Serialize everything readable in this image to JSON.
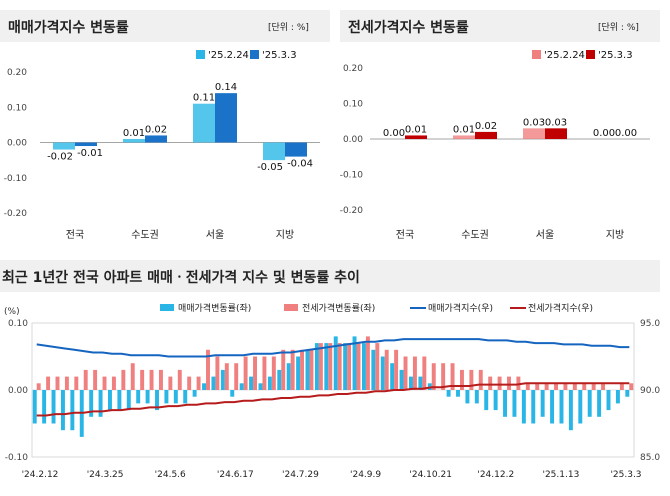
{
  "colors": {
    "panel_header_bg": "#f0f0f0",
    "sale_prev": "#29b6e6",
    "sale_curr": "#1a73c8",
    "rent_prev": "#f08080",
    "rent_curr": "#c00000",
    "sale_index_line": "#1565c0",
    "rent_index_line": "#b71c1c",
    "grid": "#d9d9d9",
    "zero_line": "#888888"
  },
  "chart_data": [
    {
      "type": "bar",
      "title": "매매가격지수 변동률",
      "unit_label": "[단위 : %]",
      "categories": [
        "전국",
        "수도권",
        "서울",
        "지방"
      ],
      "series": [
        {
          "name": "'25.2.24",
          "values": [
            -0.02,
            0.01,
            0.11,
            -0.05
          ],
          "labels": [
            "-0.02",
            "0.01",
            "0.11",
            "-0.05"
          ]
        },
        {
          "name": "'25.3.3",
          "values": [
            -0.01,
            0.02,
            0.14,
            -0.04
          ],
          "labels": [
            "-0.01",
            "0.02",
            "0.14",
            "-0.04"
          ]
        }
      ],
      "ylim": [
        -0.2,
        0.2
      ],
      "yticks": [
        "0.20",
        "0.10",
        "0.00",
        "-0.10",
        "-0.20"
      ],
      "legend": "top-right",
      "grid": false
    },
    {
      "type": "bar",
      "title": "전세가격지수 변동률",
      "unit_label": "[단위 : %]",
      "categories": [
        "전국",
        "수도권",
        "서울",
        "지방"
      ],
      "series": [
        {
          "name": "'25.2.24",
          "values": [
            0.0,
            0.01,
            0.03,
            0.0
          ],
          "labels": [
            "0.00",
            "0.01",
            "0.03",
            "0.00"
          ]
        },
        {
          "name": "'25.3.3",
          "values": [
            0.01,
            0.02,
            0.03,
            0.0
          ],
          "labels": [
            "0.01",
            "0.02",
            "0.03",
            "0.00"
          ]
        }
      ],
      "ylim": [
        -0.2,
        0.2
      ],
      "yticks": [
        "0.20",
        "0.10",
        "0.00",
        "-0.10",
        "-0.20"
      ],
      "legend": "top-right",
      "grid": false
    },
    {
      "type": "bar",
      "title": "최근 1년간 전국 아파트 매매ㆍ전세가격 지수 및 변동률 추이",
      "y_left_unit": "(%)",
      "y_left_ticks": [
        "0.10",
        "0.00",
        "-0.10"
      ],
      "y_left_lim": [
        -0.1,
        0.1
      ],
      "y_right_ticks": [
        "95.0",
        "90.0",
        "85.0"
      ],
      "y_right_lim": [
        85.0,
        95.0
      ],
      "x_tick_labels": [
        "'24.2.12",
        "'24.3.25",
        "'24.5.6",
        "'24.6.17",
        "'24.7.29",
        "'24.9.9",
        "'24.10.21",
        "'24.12.2",
        "'25.1.13",
        "'25.3.3"
      ],
      "legend": "top",
      "series": [
        {
          "name": "매매가격변동률(좌)",
          "kind": "bar",
          "values": [
            -0.05,
            -0.05,
            -0.05,
            -0.06,
            -0.06,
            -0.07,
            -0.04,
            -0.04,
            -0.03,
            -0.03,
            -0.03,
            -0.02,
            -0.02,
            -0.03,
            -0.02,
            -0.02,
            -0.02,
            -0.01,
            0.01,
            0.02,
            0.03,
            -0.01,
            0.01,
            0.02,
            0.01,
            0.02,
            0.03,
            0.04,
            0.05,
            0.06,
            0.07,
            0.07,
            0.08,
            0.07,
            0.08,
            0.07,
            0.06,
            0.05,
            0.04,
            0.03,
            0.02,
            0.02,
            0.01,
            0.0,
            -0.01,
            -0.01,
            -0.02,
            -0.02,
            -0.03,
            -0.03,
            -0.04,
            -0.04,
            -0.05,
            -0.05,
            -0.04,
            -0.05,
            -0.05,
            -0.06,
            -0.05,
            -0.04,
            -0.04,
            -0.03,
            -0.02,
            -0.01
          ]
        },
        {
          "name": "전세가격변동률(좌)",
          "kind": "bar",
          "values": [
            0.01,
            0.02,
            0.02,
            0.02,
            0.02,
            0.03,
            0.03,
            0.02,
            0.02,
            0.03,
            0.04,
            0.03,
            0.03,
            0.03,
            0.02,
            0.03,
            0.02,
            0.02,
            0.06,
            0.05,
            0.04,
            0.04,
            0.05,
            0.05,
            0.05,
            0.05,
            0.06,
            0.06,
            0.06,
            0.06,
            0.07,
            0.07,
            0.07,
            0.07,
            0.07,
            0.08,
            0.07,
            0.06,
            0.06,
            0.05,
            0.05,
            0.05,
            0.04,
            0.04,
            0.04,
            0.03,
            0.03,
            0.03,
            0.02,
            0.02,
            0.02,
            0.02,
            0.01,
            0.01,
            0.01,
            0.01,
            0.01,
            0.01,
            0.01,
            0.01,
            0.01,
            0.0,
            0.01,
            0.01
          ]
        },
        {
          "name": "매매가격지수(우)",
          "kind": "line",
          "values": [
            93.4,
            93.3,
            93.2,
            93.1,
            93.0,
            92.9,
            92.8,
            92.8,
            92.7,
            92.7,
            92.6,
            92.6,
            92.6,
            92.6,
            92.5,
            92.5,
            92.5,
            92.5,
            92.5,
            92.6,
            92.6,
            92.6,
            92.6,
            92.7,
            92.7,
            92.7,
            92.8,
            92.8,
            92.9,
            93.0,
            93.1,
            93.2,
            93.3,
            93.4,
            93.5,
            93.6,
            93.6,
            93.7,
            93.7,
            93.8,
            93.8,
            93.8,
            93.8,
            93.8,
            93.8,
            93.8,
            93.8,
            93.8,
            93.7,
            93.7,
            93.7,
            93.6,
            93.6,
            93.5,
            93.5,
            93.5,
            93.4,
            93.4,
            93.4,
            93.3,
            93.3,
            93.3,
            93.2,
            93.2
          ]
        },
        {
          "name": "전세가격지수(우)",
          "kind": "line",
          "values": [
            88.1,
            88.1,
            88.2,
            88.2,
            88.3,
            88.3,
            88.4,
            88.4,
            88.5,
            88.5,
            88.6,
            88.6,
            88.7,
            88.7,
            88.8,
            88.8,
            88.9,
            88.9,
            89.0,
            89.0,
            89.1,
            89.1,
            89.2,
            89.2,
            89.3,
            89.3,
            89.4,
            89.4,
            89.5,
            89.5,
            89.6,
            89.6,
            89.7,
            89.7,
            89.8,
            89.8,
            89.9,
            89.9,
            90.0,
            90.0,
            90.1,
            90.1,
            90.2,
            90.2,
            90.3,
            90.3,
            90.3,
            90.4,
            90.4,
            90.4,
            90.4,
            90.4,
            90.5,
            90.5,
            90.5,
            90.5,
            90.5,
            90.5,
            90.5,
            90.5,
            90.5,
            90.5,
            90.5,
            90.5
          ]
        }
      ]
    }
  ]
}
